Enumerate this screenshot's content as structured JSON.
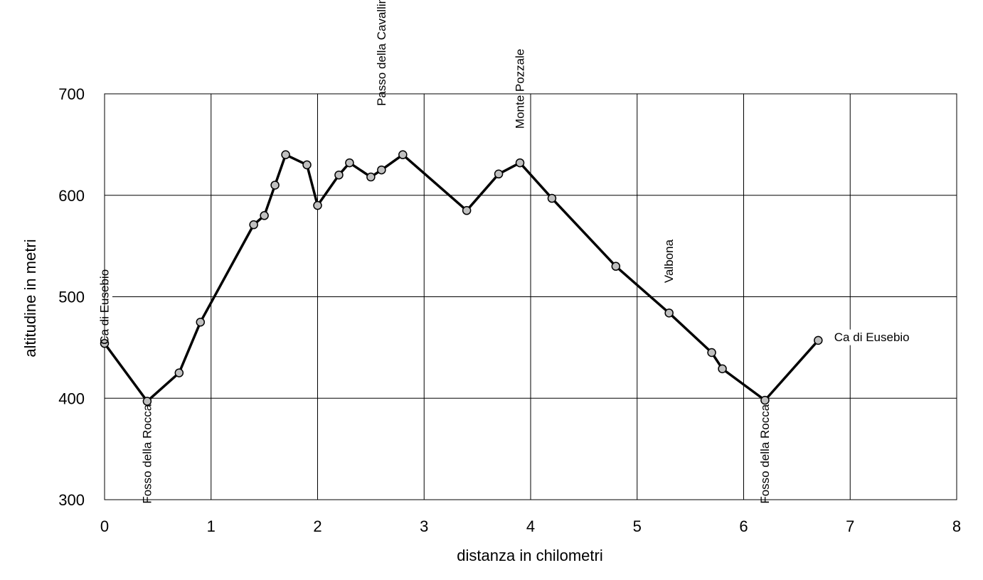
{
  "chart_data": {
    "type": "line",
    "xlabel": "distanza in chilometri",
    "ylabel": "altitudine  in metri",
    "xlim": [
      0,
      8
    ],
    "ylim": [
      300,
      700
    ],
    "x_ticks": [
      "0",
      "1",
      "2",
      "3",
      "4",
      "5",
      "6",
      "7",
      "8"
    ],
    "y_ticks": [
      "300",
      "400",
      "500",
      "600",
      "700"
    ],
    "grid": true,
    "legend": "none",
    "series": [
      {
        "x": [
          0,
          0.4,
          0.7,
          0.9,
          1.4,
          1.5,
          1.6,
          1.7,
          1.9,
          2.0,
          2.2,
          2.3,
          2.5,
          2.6,
          2.8,
          3.4,
          3.7,
          3.9,
          4.2,
          4.8,
          5.3,
          5.7,
          5.8,
          6.2,
          6.7
        ],
        "values": [
          454,
          397,
          425,
          475,
          571,
          580,
          610,
          640,
          630,
          590,
          620,
          632,
          618,
          625,
          640,
          585,
          621,
          632,
          597,
          530,
          484,
          445,
          429,
          398,
          457
        ]
      }
    ],
    "annotations": [
      {
        "text": "Ca di Eusebio",
        "x": 0,
        "y": 490,
        "orientation": "vertical"
      },
      {
        "text": "Fosso della Rocca",
        "x": 0.4,
        "y": 345,
        "orientation": "vertical"
      },
      {
        "text": "Passo della Cavallina",
        "x": 2.6,
        "y": 745,
        "orientation": "vertical"
      },
      {
        "text": "Monte Pozzale",
        "x": 3.9,
        "y": 705,
        "orientation": "vertical"
      },
      {
        "text": "Valbona",
        "x": 5.3,
        "y": 535,
        "orientation": "vertical"
      },
      {
        "text": "Fosso della Rocca",
        "x": 6.2,
        "y": 345,
        "orientation": "vertical"
      },
      {
        "text": "Ca di Eusebio",
        "x": 6.85,
        "y": 460,
        "orientation": "horizontal"
      }
    ]
  }
}
